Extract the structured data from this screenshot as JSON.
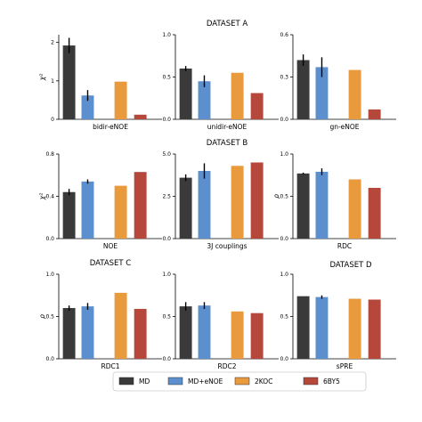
{
  "legend": {
    "labels": [
      "MD",
      "MD+eNOE",
      "2KOC",
      "6BY5"
    ],
    "colors": [
      "#3a3a3a",
      "#5b8fce",
      "#e89a3c",
      "#b5473b"
    ]
  },
  "chart_data": [
    {
      "type": "bar",
      "title": "",
      "xlabel": "bidir-eNOE",
      "ylabel": "χ²",
      "ylim": [
        0,
        2.2
      ],
      "yticks": [
        0,
        1,
        2
      ],
      "categories": [
        "MD",
        "MD+eNOE",
        "2KOC",
        "6BY5"
      ],
      "values": [
        1.92,
        0.62,
        0.98,
        0.12
      ],
      "errors": [
        0.2,
        0.14,
        0,
        0
      ]
    },
    {
      "type": "bar",
      "title": "DATASET A",
      "xlabel": "unidir-eNOE",
      "ylabel": "",
      "ylim": [
        0,
        1.0
      ],
      "yticks": [
        "0.0",
        "0.5",
        "1.0"
      ],
      "categories": [
        "MD",
        "MD+eNOE",
        "2KOC",
        "6BY5"
      ],
      "values": [
        0.6,
        0.45,
        0.55,
        0.31
      ],
      "errors": [
        0.03,
        0.07,
        0,
        0
      ]
    },
    {
      "type": "bar",
      "title": "",
      "xlabel": "gn-eNOE",
      "ylabel": "",
      "ylim": [
        0,
        0.6
      ],
      "yticks": [
        "0.0",
        "0.3",
        "0.6"
      ],
      "categories": [
        "MD",
        "MD+eNOE",
        "2KOC",
        "6BY5"
      ],
      "values": [
        0.42,
        0.37,
        0.35,
        0.07
      ],
      "errors": [
        0.04,
        0.07,
        0,
        0
      ]
    },
    {
      "type": "bar",
      "title": "",
      "xlabel": "NOE",
      "ylabel": "χ²",
      "ylim": [
        0,
        0.8
      ],
      "yticks": [
        "0.0",
        "0.4",
        "0.8"
      ],
      "categories": [
        "MD",
        "MD+eNOE",
        "2KOC",
        "6BY5"
      ],
      "values": [
        0.44,
        0.54,
        0.5,
        0.63
      ],
      "errors": [
        0.03,
        0.02,
        0,
        0
      ]
    },
    {
      "type": "bar",
      "title": "DATASET B",
      "xlabel": "3J couplings",
      "ylabel": "",
      "ylim": [
        0,
        5.0
      ],
      "yticks": [
        "0.0",
        "2.5",
        "5.0"
      ],
      "categories": [
        "MD",
        "MD+eNOE",
        "2KOC",
        "6BY5"
      ],
      "values": [
        3.6,
        4.0,
        4.3,
        4.5
      ],
      "errors": [
        0.2,
        0.45,
        0,
        0
      ]
    },
    {
      "type": "bar",
      "title": "",
      "xlabel": "RDC",
      "ylabel": "ρ",
      "ylim": [
        0,
        1.0
      ],
      "yticks": [
        "0.0",
        "0.5",
        "1.0"
      ],
      "categories": [
        "MD",
        "MD+eNOE",
        "2KOC",
        "6BY5"
      ],
      "values": [
        0.77,
        0.79,
        0.7,
        0.6
      ],
      "errors": [
        0.01,
        0.04,
        0,
        0
      ]
    },
    {
      "type": "bar",
      "title": "DATASET C",
      "xlabel": "RDC1",
      "ylabel": "ρ",
      "ylim": [
        0,
        1.0
      ],
      "yticks": [
        "0.0",
        "0.5",
        "1.0"
      ],
      "categories": [
        "MD",
        "MD+eNOE",
        "2KOC",
        "6BY5"
      ],
      "values": [
        0.6,
        0.62,
        0.78,
        0.59
      ],
      "errors": [
        0.03,
        0.04,
        0,
        0
      ]
    },
    {
      "type": "bar",
      "title": "",
      "xlabel": "RDC2",
      "ylabel": "",
      "ylim": [
        0,
        1.0
      ],
      "yticks": [
        "0.0",
        "0.5",
        "1.0"
      ],
      "categories": [
        "MD",
        "MD+eNOE",
        "2KOC",
        "6BY5"
      ],
      "values": [
        0.62,
        0.63,
        0.56,
        0.54
      ],
      "errors": [
        0.05,
        0.04,
        0,
        0
      ]
    },
    {
      "type": "bar",
      "title": "DATASET D",
      "xlabel": "sPRE",
      "ylabel": "",
      "ylim": [
        0,
        1.0
      ],
      "yticks": [
        "0.0",
        "0.5",
        "1.0"
      ],
      "categories": [
        "MD",
        "MD+eNOE",
        "2KOC",
        "6BY5"
      ],
      "values": [
        0.74,
        0.73,
        0.71,
        0.7
      ],
      "errors": [
        0,
        0.02,
        0,
        0
      ]
    }
  ]
}
